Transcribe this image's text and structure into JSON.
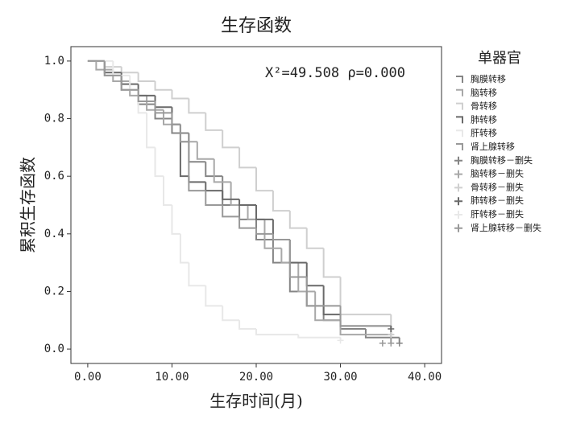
{
  "chart_data": {
    "type": "step",
    "title": "生存函数",
    "xlabel": "生存时间(月)",
    "ylabel": "累积生存函数",
    "annotation": "X²=49.508  ρ=0.000",
    "legend_title": "单器官",
    "xlim": [
      -2,
      42
    ],
    "ylim": [
      -0.05,
      1.05
    ],
    "xticks": [
      {
        "value": 0,
        "label": "0.00"
      },
      {
        "value": 10,
        "label": "10.00"
      },
      {
        "value": 20,
        "label": "20.00"
      },
      {
        "value": 30,
        "label": "30.00"
      },
      {
        "value": 40,
        "label": "40.00"
      }
    ],
    "yticks": [
      {
        "value": 0,
        "label": "0.0"
      },
      0.2,
      0.4,
      0.6,
      0.8,
      {
        "value": 1,
        "label": "1.0"
      }
    ],
    "series": [
      {
        "name": "胸膜转移",
        "color": "#858585",
        "x": [
          0,
          2,
          4,
          6,
          8,
          10,
          12,
          14,
          16,
          18,
          20,
          22,
          24,
          26,
          28,
          30,
          33,
          37
        ],
        "values": [
          1,
          0.95,
          0.9,
          0.85,
          0.8,
          0.75,
          0.65,
          0.6,
          0.5,
          0.45,
          0.38,
          0.3,
          0.2,
          0.15,
          0.1,
          0.07,
          0.04,
          0.02
        ]
      },
      {
        "name": "脑转移",
        "color": "#a8a8a8",
        "x": [
          0,
          1,
          3,
          5,
          7,
          9,
          11,
          13,
          15,
          17,
          19,
          21,
          23,
          25,
          27,
          30,
          36
        ],
        "values": [
          1,
          0.97,
          0.93,
          0.88,
          0.83,
          0.78,
          0.72,
          0.66,
          0.58,
          0.5,
          0.45,
          0.35,
          0.3,
          0.2,
          0.1,
          0.05,
          0.05
        ]
      },
      {
        "name": "骨转移",
        "color": "#cfcfcf",
        "x": [
          0,
          2,
          4,
          6,
          8,
          10,
          12,
          14,
          16,
          18,
          20,
          22,
          24,
          26,
          28,
          30,
          36
        ],
        "values": [
          1,
          0.98,
          0.96,
          0.93,
          0.9,
          0.87,
          0.82,
          0.76,
          0.7,
          0.63,
          0.55,
          0.48,
          0.42,
          0.35,
          0.25,
          0.12,
          0.05
        ]
      },
      {
        "name": "肺转移",
        "color": "#6a6a6a",
        "x": [
          0,
          2,
          4,
          6,
          8,
          10,
          11,
          12,
          14,
          16,
          18,
          20,
          22,
          24,
          26,
          28,
          30,
          36
        ],
        "values": [
          1,
          0.96,
          0.92,
          0.88,
          0.84,
          0.78,
          0.6,
          0.58,
          0.55,
          0.52,
          0.5,
          0.45,
          0.38,
          0.3,
          0.22,
          0.12,
          0.08,
          0.07
        ]
      },
      {
        "name": "肝转移",
        "color": "#e8e8e8",
        "x": [
          0,
          3,
          5,
          6,
          7,
          8,
          9,
          10,
          11,
          12,
          14,
          16,
          18,
          20,
          25,
          30
        ],
        "values": [
          1,
          0.95,
          0.9,
          0.82,
          0.7,
          0.6,
          0.5,
          0.4,
          0.3,
          0.22,
          0.15,
          0.1,
          0.07,
          0.05,
          0.04,
          0.03
        ]
      },
      {
        "name": "肾上腺转移",
        "color": "#999999",
        "x": [
          0,
          2,
          4,
          6,
          8,
          10,
          11,
          12,
          14,
          16,
          18,
          20,
          22,
          24,
          26,
          30,
          36
        ],
        "values": [
          1,
          0.95,
          0.9,
          0.86,
          0.82,
          0.78,
          0.72,
          0.55,
          0.5,
          0.46,
          0.42,
          0.4,
          0.38,
          0.25,
          0.15,
          0.08,
          0.02
        ]
      }
    ],
    "censored": [
      {
        "name": "胸膜转移－删失",
        "color": "#858585",
        "x": [
          37
        ],
        "values": [
          0.02
        ]
      },
      {
        "name": "脑转移－删失",
        "color": "#a8a8a8",
        "x": [
          36
        ],
        "values": [
          0.05
        ]
      },
      {
        "name": "骨转移－删失",
        "color": "#cfcfcf",
        "x": [
          36
        ],
        "values": [
          0.05
        ]
      },
      {
        "name": "肺转移－删失",
        "color": "#6a6a6a",
        "x": [
          36
        ],
        "values": [
          0.07
        ]
      },
      {
        "name": "肝转移－删失",
        "color": "#e8e8e8",
        "x": [
          30
        ],
        "values": [
          0.03
        ]
      },
      {
        "name": "肾上腺转移－删失",
        "color": "#999999",
        "x": [
          35,
          36
        ],
        "values": [
          0.02,
          0.02
        ]
      }
    ]
  }
}
